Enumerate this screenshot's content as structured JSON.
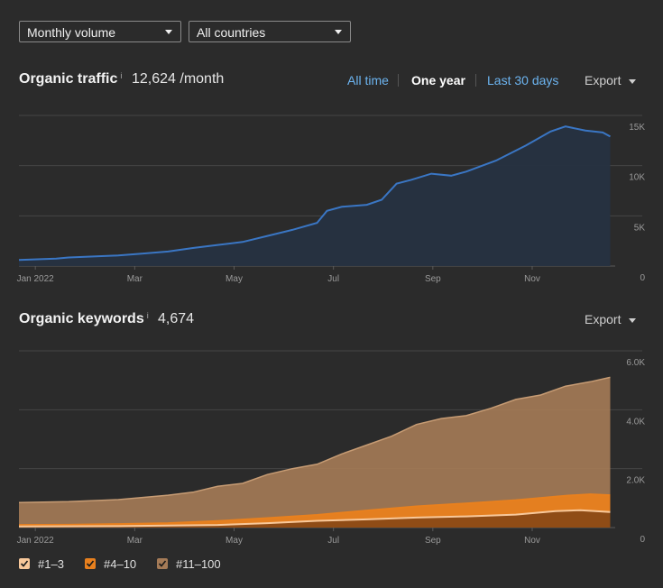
{
  "filters": {
    "volume": "Monthly volume",
    "country": "All countries"
  },
  "traffic": {
    "title": "Organic traffic",
    "info": "i",
    "value": "12,624 /month",
    "ranges": [
      "All time",
      "One year",
      "Last 30 days"
    ],
    "active_range": "One year",
    "export_label": "Export"
  },
  "keywords": {
    "title": "Organic keywords",
    "info": "i",
    "value": "4,674",
    "export_label": "Export"
  },
  "colors": {
    "traffic_line": "#3a76c4",
    "traffic_fill": "#263241",
    "kw_11_100": "#a57b57",
    "kw_4_10": "#e8801e",
    "kw_1_3": "#f8c89a",
    "link": "#6cb4f0"
  },
  "chart_data": [
    {
      "type": "area",
      "title": "Organic traffic",
      "x_ticks": [
        "Jan 2022",
        "Mar",
        "May",
        "Jul",
        "Sep",
        "Nov"
      ],
      "y_ticks": [
        "15K",
        "10K",
        "5K",
        "0"
      ],
      "ylim": [
        0,
        15000
      ],
      "grid": true,
      "series": [
        {
          "values": [
            [
              0.0,
              600
            ],
            [
              0.25,
              650
            ],
            [
              0.5,
              700
            ],
            [
              0.75,
              750
            ],
            [
              1.0,
              850
            ],
            [
              1.5,
              950
            ],
            [
              2.0,
              1050
            ],
            [
              2.5,
              1250
            ],
            [
              3.0,
              1450
            ],
            [
              3.5,
              1800
            ],
            [
              4.0,
              2100
            ],
            [
              4.5,
              2400
            ],
            [
              5.0,
              3000
            ],
            [
              5.5,
              3600
            ],
            [
              6.0,
              4300
            ],
            [
              6.2,
              5500
            ],
            [
              6.5,
              5900
            ],
            [
              7.0,
              6100
            ],
            [
              7.3,
              6600
            ],
            [
              7.6,
              8200
            ],
            [
              7.9,
              8600
            ],
            [
              8.3,
              9200
            ],
            [
              8.7,
              9000
            ],
            [
              9.0,
              9400
            ],
            [
              9.6,
              10500
            ],
            [
              10.2,
              12000
            ],
            [
              10.7,
              13400
            ],
            [
              11.0,
              13900
            ],
            [
              11.4,
              13500
            ],
            [
              11.75,
              13300
            ],
            [
              11.9,
              12900
            ]
          ]
        }
      ]
    },
    {
      "type": "area",
      "title": "Organic keywords",
      "x_ticks": [
        "Jan 2022",
        "Mar",
        "May",
        "Jul",
        "Sep",
        "Nov"
      ],
      "y_ticks": [
        "6.0K",
        "4.0K",
        "2.0K",
        "0"
      ],
      "ylim": [
        0,
        6000
      ],
      "grid": true,
      "legend": [
        "#1–3",
        "#4–10",
        "#11–100"
      ],
      "series": [
        {
          "name": "#11–100",
          "values": [
            [
              0,
              850
            ],
            [
              1.0,
              880
            ],
            [
              2.0,
              950
            ],
            [
              3.0,
              1100
            ],
            [
              3.5,
              1200
            ],
            [
              4.0,
              1400
            ],
            [
              4.5,
              1500
            ],
            [
              5.0,
              1800
            ],
            [
              5.5,
              2000
            ],
            [
              6.0,
              2150
            ],
            [
              6.5,
              2500
            ],
            [
              7.0,
              2800
            ],
            [
              7.5,
              3100
            ],
            [
              8.0,
              3500
            ],
            [
              8.5,
              3700
            ],
            [
              9.0,
              3800
            ],
            [
              9.5,
              4050
            ],
            [
              10.0,
              4350
            ],
            [
              10.5,
              4500
            ],
            [
              11.0,
              4800
            ],
            [
              11.5,
              4950
            ],
            [
              11.9,
              5100
            ]
          ]
        },
        {
          "name": "#4–10",
          "values": [
            [
              0,
              90
            ],
            [
              1.0,
              95
            ],
            [
              2.0,
              120
            ],
            [
              3.0,
              150
            ],
            [
              4.0,
              220
            ],
            [
              5.0,
              320
            ],
            [
              6.0,
              430
            ],
            [
              7.0,
              580
            ],
            [
              8.0,
              720
            ],
            [
              9.0,
              820
            ],
            [
              10.0,
              930
            ],
            [
              11.0,
              1080
            ],
            [
              11.5,
              1130
            ],
            [
              11.9,
              1100
            ]
          ]
        },
        {
          "name": "#1–3",
          "values": [
            [
              0,
              40
            ],
            [
              2.0,
              50
            ],
            [
              4.0,
              90
            ],
            [
              5.0,
              150
            ],
            [
              6.0,
              230
            ],
            [
              7.0,
              280
            ],
            [
              8.0,
              340
            ],
            [
              9.0,
              380
            ],
            [
              10.0,
              440
            ],
            [
              10.8,
              560
            ],
            [
              11.3,
              590
            ],
            [
              11.9,
              530
            ]
          ]
        }
      ]
    }
  ]
}
